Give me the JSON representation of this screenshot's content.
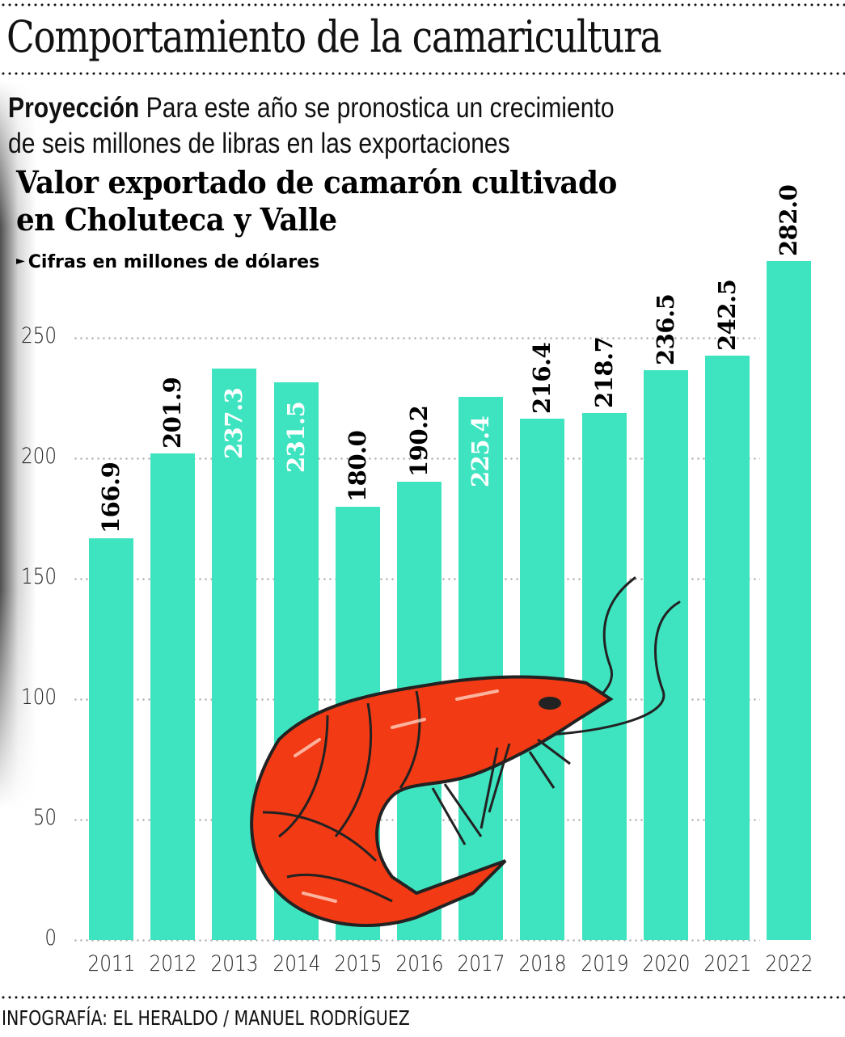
{
  "header": {
    "headline": "Comportamiento de la camaricultura",
    "deck_lead": "Proyección",
    "deck_line1": " Para este año se pronostica un crecimiento",
    "deck_line2": "de seis millones de libras en las exportaciones"
  },
  "chart": {
    "title_line1": "Valor exportado de camarón cultivado",
    "title_line2": "en Choluteca y Valle",
    "units_marker": "►",
    "units": "Cifras en millones de dólares",
    "bar_color": "#3ee3c0",
    "illustration": "shrimp-illustration"
  },
  "y_ticks": [
    "0",
    "50",
    "100",
    "150",
    "200",
    "250"
  ],
  "bars": [
    {
      "year": "2011",
      "label": "166.9",
      "label_color": "#000000"
    },
    {
      "year": "2012",
      "label": "201.9",
      "label_color": "#000000"
    },
    {
      "year": "2013",
      "label": "237.3",
      "label_color": "#ffffff"
    },
    {
      "year": "2014",
      "label": "231.5",
      "label_color": "#ffffff"
    },
    {
      "year": "2015",
      "label": "180.0",
      "label_color": "#000000"
    },
    {
      "year": "2016",
      "label": "190.2",
      "label_color": "#000000"
    },
    {
      "year": "2017",
      "label": "225.4",
      "label_color": "#ffffff"
    },
    {
      "year": "2018",
      "label": "216.4",
      "label_color": "#000000"
    },
    {
      "year": "2019",
      "label": "218.7",
      "label_color": "#000000"
    },
    {
      "year": "2020",
      "label": "236.5",
      "label_color": "#000000"
    },
    {
      "year": "2021",
      "label": "242.5",
      "label_color": "#000000"
    },
    {
      "year": "2022",
      "label": "282.0",
      "label_color": "#000000"
    }
  ],
  "credit": "INFOGRAFÍA: EL HERALDO / MANUEL RODRÍGUEZ",
  "chart_data": {
    "type": "bar",
    "title": "Valor exportado de camarón cultivado en Choluteca y Valle",
    "subtitle": "Cifras en millones de dólares",
    "categories": [
      "2011",
      "2012",
      "2013",
      "2014",
      "2015",
      "2016",
      "2017",
      "2018",
      "2019",
      "2020",
      "2021",
      "2022"
    ],
    "values": [
      166.9,
      201.9,
      237.3,
      231.5,
      180.0,
      190.2,
      225.4,
      216.4,
      218.7,
      236.5,
      242.5,
      282.0
    ],
    "xlabel": "",
    "ylabel": "",
    "yticks": [
      0,
      50,
      100,
      150,
      200,
      250
    ],
    "ylim": [
      0,
      290
    ],
    "grid": true,
    "legend": "none",
    "annotations": [
      "Value labels rotated vertically above or inside each bar"
    ]
  }
}
